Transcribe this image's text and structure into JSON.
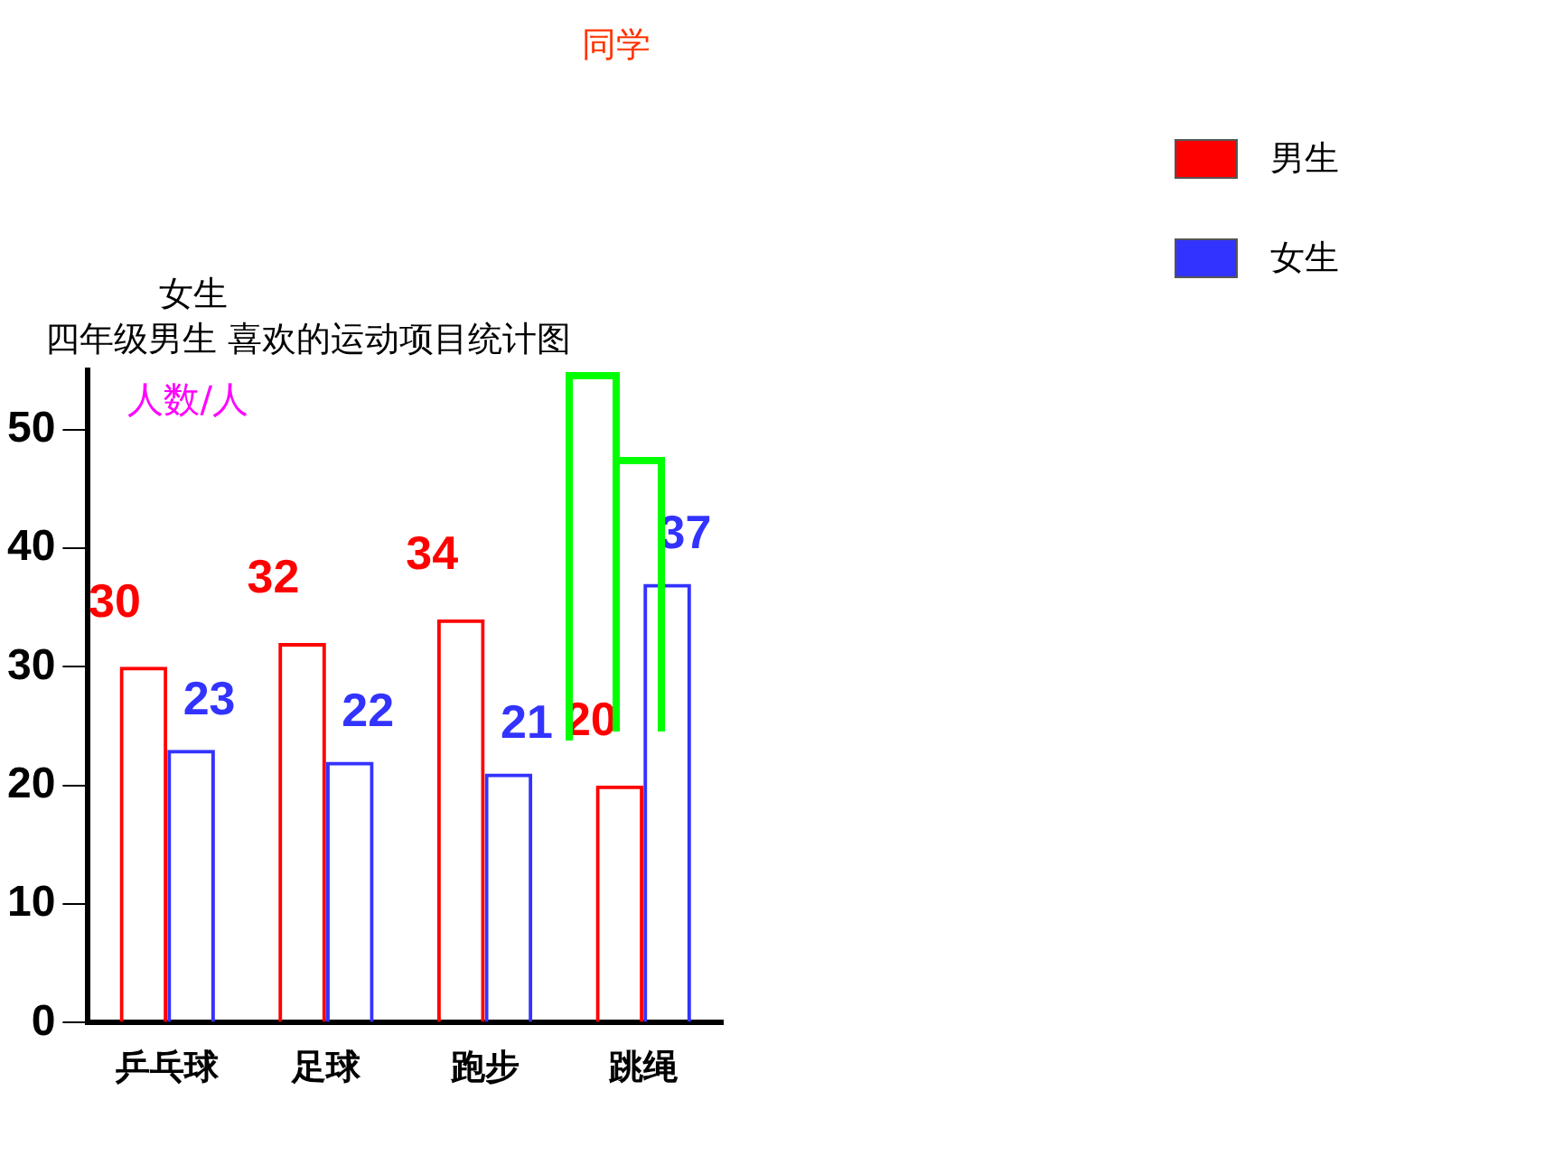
{
  "chart_data": {
    "type": "bar",
    "title": "四年级男生 喜欢的运动项目统计图",
    "ylabel": "人数/人",
    "annotations": [
      "女生",
      "同学"
    ],
    "categories": [
      "乒乓球",
      "足球",
      "跑步",
      "跳绳"
    ],
    "series": [
      {
        "name": "男生",
        "color": "#ff0000",
        "values": [
          30,
          32,
          34,
          20
        ]
      },
      {
        "name": "女生",
        "color": "#3333ff",
        "values": [
          23,
          22,
          21,
          37
        ]
      }
    ],
    "ylim": [
      0,
      55
    ],
    "yticks": [
      0,
      10,
      20,
      30,
      40,
      50
    ],
    "grid": false,
    "legend": "top right",
    "data_labels": true
  }
}
